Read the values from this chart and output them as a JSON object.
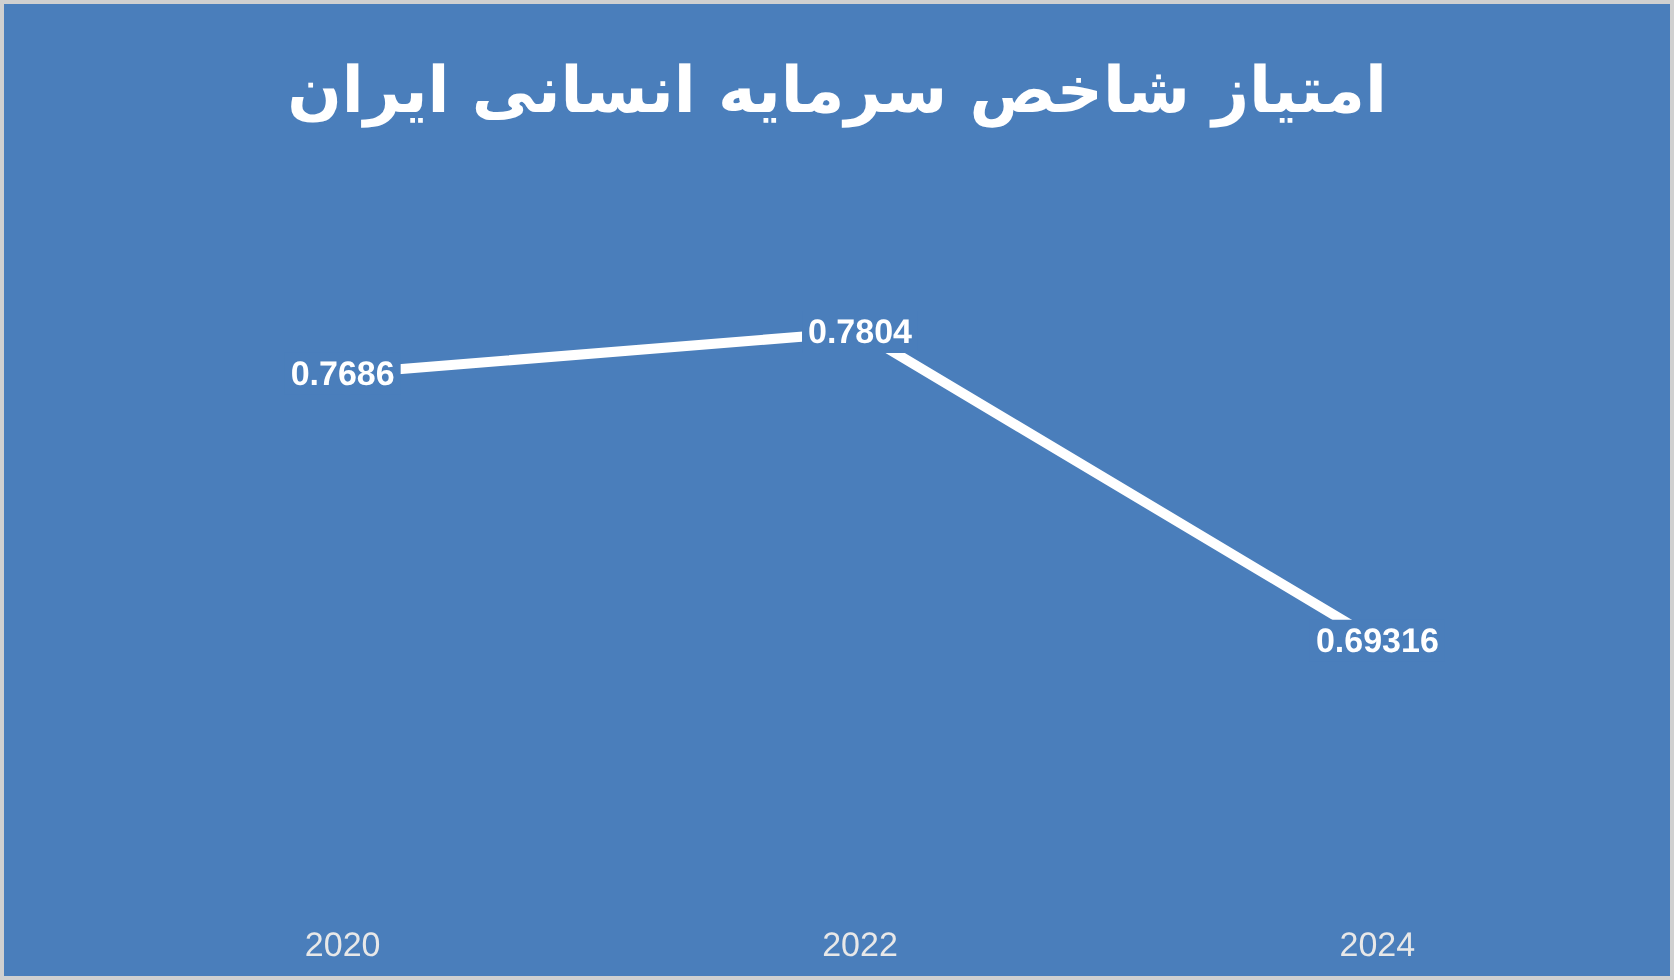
{
  "chart_data": {
    "type": "line",
    "title": "امتیاز شاخص سرمایه انسانی ایران",
    "categories": [
      "2020",
      "2022",
      "2024"
    ],
    "values": [
      0.7686,
      0.7804,
      0.69316
    ],
    "color": "#ffffff",
    "data_labels": true,
    "line_style": "solid"
  }
}
